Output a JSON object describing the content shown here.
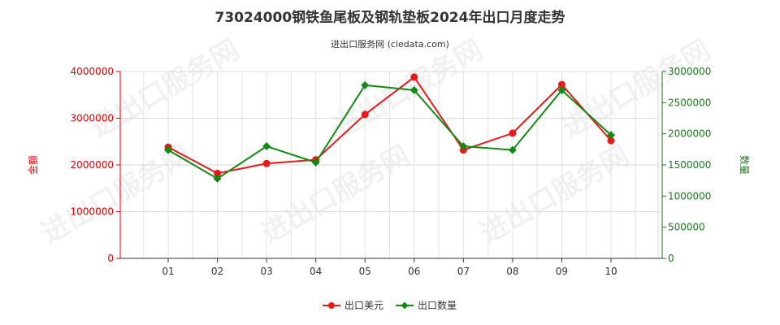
{
  "chart_data": {
    "type": "line",
    "title": "73024000钢铁鱼尾板及钢轨垫板2024年出口月度走势",
    "subtitle": "进出口服务网 (ciedata.com)",
    "categories": [
      "01",
      "02",
      "03",
      "04",
      "05",
      "06",
      "07",
      "08",
      "09",
      "10"
    ],
    "y_left": {
      "label": "金额",
      "range": [
        0,
        4000000
      ],
      "ticks": [
        "0",
        "1000000",
        "2000000",
        "3000000",
        "4000000"
      ],
      "tick_values": [
        0,
        1000000,
        2000000,
        3000000,
        4000000
      ]
    },
    "y_right": {
      "label": "数量",
      "range": [
        0,
        3000000
      ],
      "ticks": [
        "0",
        "500000",
        "1000000",
        "1500000",
        "2000000",
        "2500000",
        "3000000"
      ],
      "tick_values": [
        0,
        500000,
        1000000,
        1500000,
        2000000,
        2500000,
        3000000
      ]
    },
    "series": [
      {
        "name": "出口美元",
        "axis": "left",
        "color": "#e8191a",
        "values": [
          2380000,
          1820000,
          2030000,
          2110000,
          3080000,
          3880000,
          2320000,
          2680000,
          3720000,
          2520000
        ]
      },
      {
        "name": "出口数量",
        "axis": "right",
        "color": "#138a13",
        "values": [
          1740000,
          1280000,
          1800000,
          1540000,
          2780000,
          2700000,
          1800000,
          1740000,
          2700000,
          1980000
        ]
      }
    ],
    "grid": true,
    "legend": "bottom-center"
  },
  "watermark": {
    "text": "进出口服务网",
    "color": "#000000"
  }
}
